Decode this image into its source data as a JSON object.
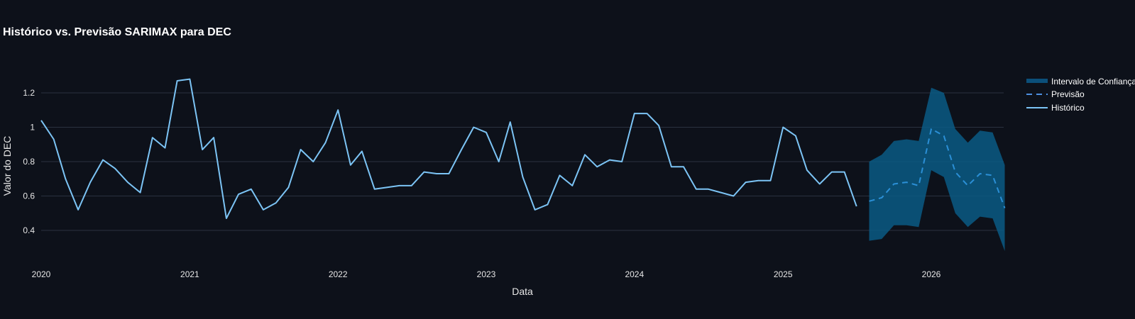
{
  "chart_data": {
    "type": "line",
    "title": "Histórico vs. Previsão SARIMAX para DEC",
    "xlabel": "Data",
    "ylabel": "Valor do DEC",
    "ylim": [
      0.2,
      1.35
    ],
    "xlim": [
      "2020-01-01",
      "2026-06-01"
    ],
    "x_ticks": [
      {
        "value": "2020-01-01",
        "label": "2020"
      },
      {
        "value": "2021-01-01",
        "label": "2021"
      },
      {
        "value": "2022-01-01",
        "label": "2022"
      },
      {
        "value": "2023-01-01",
        "label": "2023"
      },
      {
        "value": "2024-01-01",
        "label": "2024"
      },
      {
        "value": "2025-01-01",
        "label": "2025"
      },
      {
        "value": "2026-01-01",
        "label": "2026"
      }
    ],
    "y_ticks": [
      {
        "value": 0.4,
        "label": "0.4"
      },
      {
        "value": 0.6,
        "label": "0.6"
      },
      {
        "value": 0.8,
        "label": "0.8"
      },
      {
        "value": 1.0,
        "label": "1"
      },
      {
        "value": 1.2,
        "label": "1.2"
      }
    ],
    "grid": "horizontal",
    "legend_position": "right",
    "legend": [
      {
        "key": "confidence",
        "label": "Intervalo de Confiança",
        "style": "band"
      },
      {
        "key": "forecast",
        "label": "Previsão",
        "style": "dash"
      },
      {
        "key": "historical",
        "label": "Histórico",
        "style": "solid"
      }
    ],
    "colors": {
      "background": "#0d111a",
      "grid": "#2a3140",
      "historical": "#7cc4f5",
      "forecast": "#2b8fd6",
      "forecast_legend": "#4d8fe0",
      "band": "#0a5a85",
      "band_legend": "#0b4f7a"
    },
    "series": [
      {
        "name": "Histórico",
        "key": "historical",
        "dates": [
          "2020-01-01",
          "2020-02-01",
          "2020-03-01",
          "2020-04-01",
          "2020-05-01",
          "2020-06-01",
          "2020-07-01",
          "2020-08-01",
          "2020-09-01",
          "2020-10-01",
          "2020-11-01",
          "2020-12-01",
          "2021-01-01",
          "2021-02-01",
          "2021-03-01",
          "2021-04-01",
          "2021-05-01",
          "2021-06-01",
          "2021-07-01",
          "2021-08-01",
          "2021-09-01",
          "2021-10-01",
          "2021-11-01",
          "2021-12-01",
          "2022-01-01",
          "2022-02-01",
          "2022-03-01",
          "2022-04-01",
          "2022-05-01",
          "2022-06-01",
          "2022-07-01",
          "2022-08-01",
          "2022-09-01",
          "2022-10-01",
          "2022-11-01",
          "2022-12-01",
          "2023-01-01",
          "2023-02-01",
          "2023-03-01",
          "2023-04-01",
          "2023-05-01",
          "2023-06-01",
          "2023-07-01",
          "2023-08-01",
          "2023-09-01",
          "2023-10-01",
          "2023-11-01",
          "2023-12-01",
          "2024-01-01",
          "2024-02-01",
          "2024-03-01",
          "2024-04-01",
          "2024-05-01",
          "2024-06-01",
          "2024-07-01",
          "2024-08-01",
          "2024-09-01",
          "2024-10-01",
          "2024-11-01",
          "2024-12-01",
          "2025-01-01",
          "2025-02-01",
          "2025-03-01",
          "2025-04-01",
          "2025-05-01",
          "2025-06-01",
          "2025-07-01"
        ],
        "values": [
          1.04,
          0.93,
          0.7,
          0.52,
          0.68,
          0.81,
          0.76,
          0.68,
          0.62,
          0.94,
          0.88,
          1.27,
          1.28,
          0.87,
          0.94,
          0.47,
          0.61,
          0.64,
          0.52,
          0.56,
          0.65,
          0.87,
          0.8,
          0.91,
          1.1,
          0.78,
          0.86,
          0.64,
          0.65,
          0.66,
          0.66,
          0.74,
          0.73,
          0.73,
          0.87,
          1.0,
          0.97,
          0.8,
          1.03,
          0.71,
          0.52,
          0.55,
          0.72,
          0.66,
          0.84,
          0.77,
          0.81,
          0.8,
          1.08,
          1.08,
          1.01,
          0.77,
          0.77,
          0.64,
          0.64,
          0.62,
          0.6,
          0.68,
          0.69,
          0.69,
          1.0,
          0.95,
          0.75,
          0.67,
          0.74,
          0.74,
          0.54
        ]
      },
      {
        "name": "Previsão",
        "key": "forecast",
        "dates": [
          "2025-08-01",
          "2025-09-01",
          "2025-10-01",
          "2025-11-01",
          "2025-12-01",
          "2026-01-01",
          "2026-02-01",
          "2026-03-01",
          "2026-04-01",
          "2026-05-01",
          "2026-06-01",
          "2026-07-01"
        ],
        "values": [
          0.57,
          0.59,
          0.67,
          0.68,
          0.66,
          0.99,
          0.95,
          0.74,
          0.66,
          0.73,
          0.72,
          0.53
        ]
      },
      {
        "name": "Intervalo de Confiança",
        "key": "confidence",
        "dates": [
          "2025-08-01",
          "2025-09-01",
          "2025-10-01",
          "2025-11-01",
          "2025-12-01",
          "2026-01-01",
          "2026-02-01",
          "2026-03-01",
          "2026-04-01",
          "2026-05-01",
          "2026-06-01",
          "2026-07-01"
        ],
        "lower": [
          0.34,
          0.35,
          0.43,
          0.43,
          0.42,
          0.75,
          0.71,
          0.5,
          0.42,
          0.48,
          0.47,
          0.28
        ],
        "upper": [
          0.8,
          0.84,
          0.92,
          0.93,
          0.92,
          1.23,
          1.2,
          0.99,
          0.91,
          0.98,
          0.97,
          0.78
        ]
      }
    ]
  }
}
